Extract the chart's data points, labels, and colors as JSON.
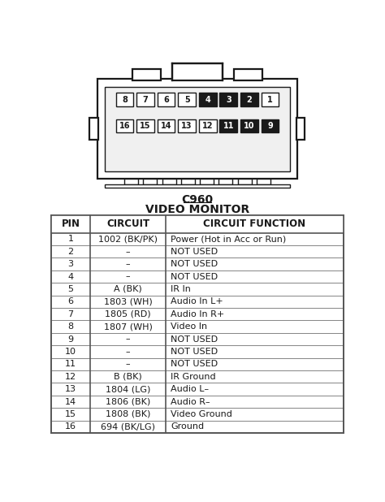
{
  "title1": "C960",
  "title2": "VIDEO MONITOR",
  "col_headers": [
    "PIN",
    "CIRCUIT",
    "CIRCUIT FUNCTION"
  ],
  "rows": [
    [
      "1",
      "1002 (BK/PK)",
      "Power (Hot in Acc or Run)"
    ],
    [
      "2",
      "–",
      "NOT USED"
    ],
    [
      "3",
      "–",
      "NOT USED"
    ],
    [
      "4",
      "–",
      "NOT USED"
    ],
    [
      "5",
      "A (BK)",
      "IR In"
    ],
    [
      "6",
      "1803 (WH)",
      "Audio In L+"
    ],
    [
      "7",
      "1805 (RD)",
      "Audio In R+"
    ],
    [
      "8",
      "1807 (WH)",
      "Video In"
    ],
    [
      "9",
      "–",
      "NOT USED"
    ],
    [
      "10",
      "–",
      "NOT USED"
    ],
    [
      "11",
      "–",
      "NOT USED"
    ],
    [
      "12",
      "B (BK)",
      "IR Ground"
    ],
    [
      "13",
      "1804 (LG)",
      "Audio L–"
    ],
    [
      "14",
      "1806 (BK)",
      "Audio R–"
    ],
    [
      "15",
      "1808 (BK)",
      "Video Ground"
    ],
    [
      "16",
      "694 (BK/LG)",
      "Ground"
    ]
  ],
  "top_row_pins": [
    "8",
    "7",
    "6",
    "5",
    "4",
    "3",
    "2",
    "1"
  ],
  "top_row_filled": [
    false,
    false,
    false,
    false,
    true,
    true,
    true,
    false
  ],
  "bot_row_pins": [
    "16",
    "15",
    "14",
    "13",
    "12",
    "11",
    "10",
    "9"
  ],
  "bot_row_filled": [
    false,
    false,
    false,
    false,
    false,
    true,
    true,
    true
  ],
  "bg_color": "#ffffff",
  "connector_fill": "#ffffff",
  "pin_filled_color": "#1a1a1a",
  "pin_empty_color": "#ffffff",
  "border_color": "#1a1a1a",
  "text_color": "#1a1a1a",
  "table_line_color": "#555555",
  "diagram_bg": "#ffffff"
}
